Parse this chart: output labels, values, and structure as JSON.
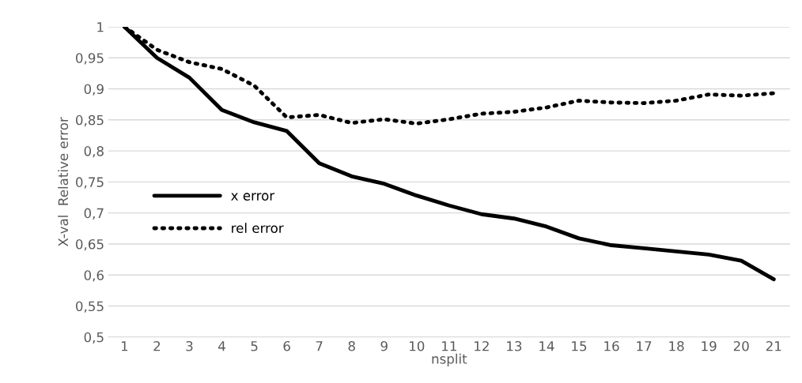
{
  "chart_data": {
    "type": "line",
    "xlabel": "nsplit",
    "ylabel": "X-val  Relative error",
    "categories": [
      "1",
      "2",
      "3",
      "4",
      "5",
      "6",
      "7",
      "8",
      "9",
      "10",
      "11",
      "12",
      "13",
      "14",
      "15",
      "16",
      "17",
      "18",
      "19",
      "20",
      "21"
    ],
    "series": [
      {
        "name": "x error",
        "color": "#000000",
        "line_style": "solid",
        "values": [
          1.0,
          0.95,
          0.918,
          0.866,
          0.846,
          0.832,
          0.78,
          0.759,
          0.747,
          0.728,
          0.712,
          0.698,
          0.691,
          0.678,
          0.659,
          0.648,
          0.643,
          0.638,
          0.633,
          0.623,
          0.593
        ]
      },
      {
        "name": "rel error",
        "color": "#000000",
        "line_style": "dotted",
        "values": [
          1.0,
          0.963,
          0.943,
          0.932,
          0.905,
          0.854,
          0.858,
          0.845,
          0.851,
          0.844,
          0.851,
          0.86,
          0.863,
          0.87,
          0.881,
          0.878,
          0.877,
          0.881,
          0.891,
          0.889,
          0.893
        ]
      }
    ],
    "ylim": [
      0.5,
      1
    ],
    "yticks": [
      {
        "value": 0.5,
        "label": "0,5"
      },
      {
        "value": 0.55,
        "label": "0,55"
      },
      {
        "value": 0.6,
        "label": "0,6"
      },
      {
        "value": 0.65,
        "label": "0,65"
      },
      {
        "value": 0.7,
        "label": "0,7"
      },
      {
        "value": 0.75,
        "label": "0,75"
      },
      {
        "value": 0.8,
        "label": "0,8"
      },
      {
        "value": 0.85,
        "label": "0,85"
      },
      {
        "value": 0.9,
        "label": "0,9"
      },
      {
        "value": 0.95,
        "label": "0,95"
      },
      {
        "value": 1,
        "label": "1"
      }
    ],
    "grid": "y",
    "legend": "center left",
    "marker": "none"
  }
}
